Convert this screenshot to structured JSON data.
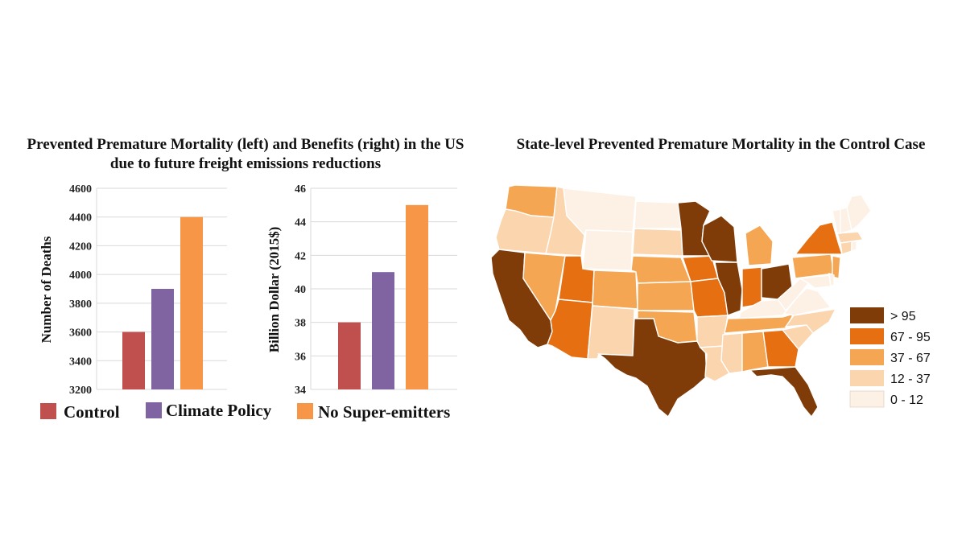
{
  "colors": {
    "control": "#C0504D",
    "climate": "#8064A2",
    "nosuper": "#F79646",
    "grid": "#D9D9D9",
    "bins": [
      "#7F3B08",
      "#E66F11",
      "#F5A653",
      "#FAD5AE",
      "#FDF1E5"
    ]
  },
  "chart_data": [
    {
      "type": "bar",
      "title": "Prevented Premature Mortality (left) and Benefits (right) in the US due to future freight emissions reductions",
      "ylabel": "Number of Deaths",
      "ylim": [
        3200,
        4600
      ],
      "yticks": [
        3200,
        3400,
        3600,
        3800,
        4000,
        4200,
        4400,
        4600
      ],
      "categories": [
        "Control",
        "Climate Policy",
        "No Super-emitters"
      ],
      "values": [
        3600,
        3900,
        4400
      ]
    },
    {
      "type": "bar",
      "ylabel": "Billion Dollar (2015$)",
      "ylim": [
        34,
        46
      ],
      "yticks": [
        34,
        36,
        38,
        40,
        42,
        44,
        46
      ],
      "categories": [
        "Control",
        "Climate Policy",
        "No Super-emitters"
      ],
      "values": [
        38,
        41,
        45
      ]
    },
    {
      "type": "choropleth",
      "title": "State-level Prevented Premature Mortality in the Control Case",
      "bins": [
        "> 95",
        "67 - 95",
        "37 - 67",
        "12 - 37",
        "0 - 12"
      ],
      "states": [
        {
          "id": "WA",
          "bin": 2
        },
        {
          "id": "OR",
          "bin": 3
        },
        {
          "id": "CA",
          "bin": 0
        },
        {
          "id": "ID",
          "bin": 3
        },
        {
          "id": "NV",
          "bin": 2
        },
        {
          "id": "MT",
          "bin": 4
        },
        {
          "id": "WY",
          "bin": 4
        },
        {
          "id": "UT",
          "bin": 1
        },
        {
          "id": "AZ",
          "bin": 1
        },
        {
          "id": "CO",
          "bin": 2
        },
        {
          "id": "NM",
          "bin": 3
        },
        {
          "id": "ND",
          "bin": 4
        },
        {
          "id": "SD",
          "bin": 3
        },
        {
          "id": "NE",
          "bin": 2
        },
        {
          "id": "KS",
          "bin": 2
        },
        {
          "id": "OK",
          "bin": 2
        },
        {
          "id": "TX",
          "bin": 0
        },
        {
          "id": "MN",
          "bin": 0
        },
        {
          "id": "IA",
          "bin": 1
        },
        {
          "id": "MO",
          "bin": 1
        },
        {
          "id": "AR",
          "bin": 3
        },
        {
          "id": "LA",
          "bin": 3
        },
        {
          "id": "WI",
          "bin": 0
        },
        {
          "id": "IL",
          "bin": 0
        },
        {
          "id": "MI",
          "bin": 2
        },
        {
          "id": "IN",
          "bin": 1
        },
        {
          "id": "OH",
          "bin": 0
        },
        {
          "id": "KY",
          "bin": 4
        },
        {
          "id": "TN",
          "bin": 2
        },
        {
          "id": "MS",
          "bin": 3
        },
        {
          "id": "AL",
          "bin": 2
        },
        {
          "id": "GA",
          "bin": 1
        },
        {
          "id": "FL",
          "bin": 0
        },
        {
          "id": "SC",
          "bin": 3
        },
        {
          "id": "NC",
          "bin": 3
        },
        {
          "id": "VA",
          "bin": 4
        },
        {
          "id": "WV",
          "bin": 4
        },
        {
          "id": "PA",
          "bin": 2
        },
        {
          "id": "NY",
          "bin": 1
        },
        {
          "id": "NJ",
          "bin": 2
        },
        {
          "id": "MD",
          "bin": 4
        },
        {
          "id": "DE",
          "bin": 4
        },
        {
          "id": "CT",
          "bin": 3
        },
        {
          "id": "RI",
          "bin": 4
        },
        {
          "id": "MA",
          "bin": 3
        },
        {
          "id": "VT",
          "bin": 4
        },
        {
          "id": "NH",
          "bin": 4
        },
        {
          "id": "ME",
          "bin": 4
        }
      ]
    }
  ],
  "legend": {
    "control": "Control",
    "climate": "Climate Policy",
    "nosuper": "No Super-emitters"
  }
}
